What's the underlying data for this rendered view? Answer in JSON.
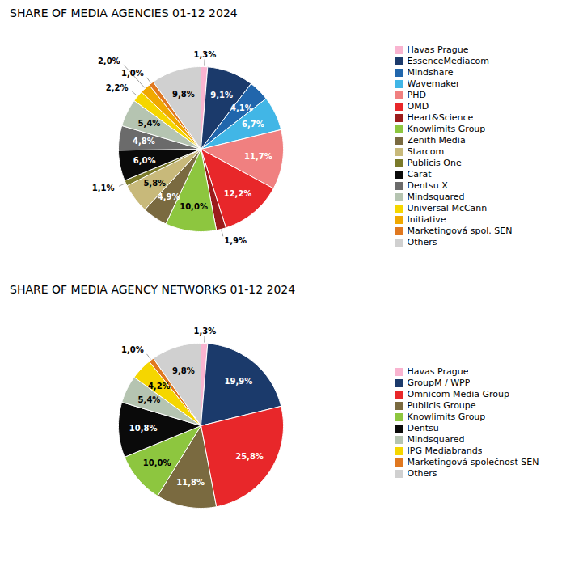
{
  "chart_data": [
    {
      "type": "pie",
      "title": "SHARE OF MEDIA AGENCIES 01-12 2024",
      "categories": [
        "Havas Prague",
        "EssenceMediacom",
        "Mindshare",
        "Wavemaker",
        "PHD",
        "OMD",
        "Heart&Science",
        "Knowlimits Group",
        "Zenith Media",
        "Starcom",
        "Publicis One",
        "Carat",
        "Dentsu X",
        "Mindsquared",
        "Universal McCann",
        "Initiative",
        "Marketingová spol. SEN",
        "Others"
      ],
      "values": [
        1.3,
        9.1,
        4.1,
        6.7,
        11.7,
        12.2,
        1.9,
        10.0,
        4.9,
        5.8,
        1.1,
        6.0,
        4.8,
        5.4,
        2.2,
        2.0,
        1.0,
        9.8
      ],
      "value_labels": [
        "1,3%",
        "9,1%",
        "4,1%",
        "6,7%",
        "11,7%",
        "12,2%",
        "1,9%",
        "10,0%",
        "4,9%",
        "5,8%",
        "1,1%",
        "6,0%",
        "4,8%",
        "5,4%",
        "2,2%",
        "2,0%",
        "1,0%",
        "9,8%"
      ],
      "colors": [
        "#f9b4d0",
        "#1b3a6b",
        "#2166ac",
        "#41b6e6",
        "#f08080",
        "#e8272a",
        "#9b1c1c",
        "#8dc63f",
        "#7a6a40",
        "#c8b97a",
        "#7a7a2a",
        "#0a0a0a",
        "#6b6b6b",
        "#b5c4b1",
        "#f5d600",
        "#f0a800",
        "#e07820",
        "#d0d0d0"
      ],
      "data_labels": true,
      "legend": "right"
    },
    {
      "type": "pie",
      "title": "SHARE OF MEDIA AGENCY NETWORKS 01-12 2024",
      "categories": [
        "Havas Prague",
        "GroupM / WPP",
        "Omnicom Media Group",
        "Publicis Groupe",
        "Knowlimits Group",
        "Dentsu",
        "Mindsquared",
        "IPG Mediabrands",
        "Marketingová společnost SEN",
        "Others"
      ],
      "values": [
        1.3,
        19.9,
        25.8,
        11.8,
        10.0,
        10.8,
        5.4,
        4.2,
        1.0,
        9.8
      ],
      "value_labels": [
        "1,3%",
        "19,9%",
        "25,8%",
        "11,8%",
        "10,0%",
        "10,8%",
        "5,4%",
        "4,2%",
        "1,0%",
        "9,8%"
      ],
      "colors": [
        "#f9b4d0",
        "#1b3a6b",
        "#e8272a",
        "#7a6a40",
        "#8dc63f",
        "#0a0a0a",
        "#b5c4b1",
        "#f5d600",
        "#e07820",
        "#d0d0d0"
      ],
      "data_labels": true,
      "legend": "right"
    }
  ]
}
